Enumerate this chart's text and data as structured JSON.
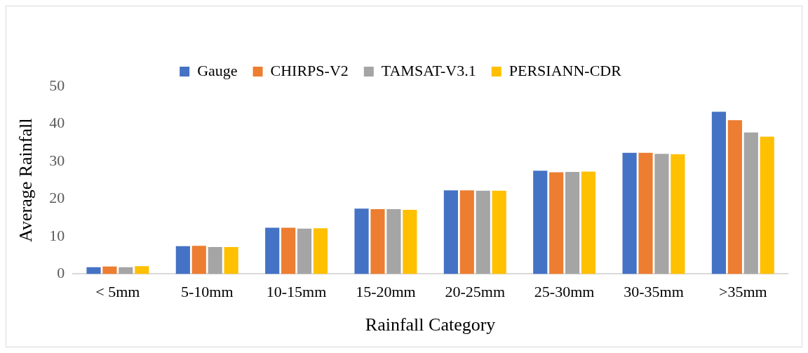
{
  "chart_data": {
    "type": "bar",
    "xlabel": "Rainfall Category",
    "ylabel": "Average Rainfall",
    "categories": [
      "< 5mm",
      "5-10mm",
      "10-15mm",
      "15-20mm",
      "20-25mm",
      "25-30mm",
      "30-35mm",
      ">35mm"
    ],
    "series": [
      {
        "name": "Gauge",
        "color": "#4472c4",
        "values": [
          1.8,
          7.4,
          12.3,
          17.4,
          22.3,
          27.5,
          32.3,
          43.2
        ]
      },
      {
        "name": "CHIRPS-V2",
        "color": "#ed7d31",
        "values": [
          2.0,
          7.5,
          12.3,
          17.3,
          22.3,
          27.1,
          32.3,
          41.0
        ]
      },
      {
        "name": "TAMSAT-V3.1",
        "color": "#a5a5a5",
        "values": [
          1.8,
          7.2,
          12.1,
          17.3,
          22.2,
          27.2,
          32.0,
          37.7
        ]
      },
      {
        "name": "PERSIANN-CDR",
        "color": "#ffc000",
        "values": [
          2.1,
          7.2,
          12.2,
          17.1,
          22.2,
          27.3,
          31.9,
          36.6
        ]
      }
    ],
    "ylim": [
      0,
      50
    ],
    "yticks": [
      0,
      10,
      20,
      30,
      40,
      50
    ],
    "grid": false,
    "legend": "top"
  }
}
